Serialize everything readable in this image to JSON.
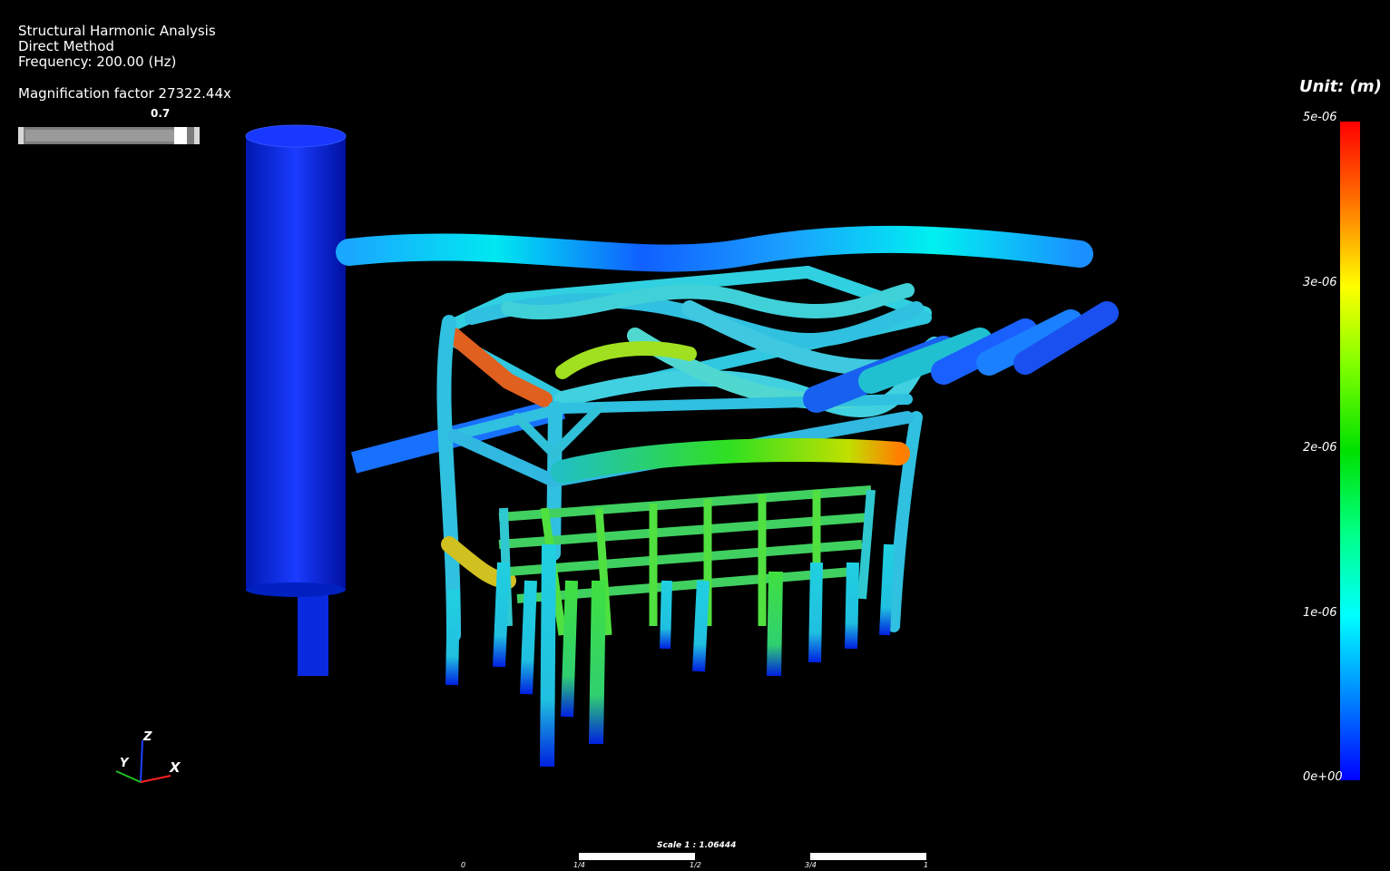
{
  "header": {
    "title": "Structural Harmonic Analysis",
    "method": "Direct Method",
    "frequency": "Frequency: 200.00 (Hz)",
    "magnification": "Magnification factor 27322.44x"
  },
  "slider": {
    "value_label": "0.7",
    "value": 0.7
  },
  "legend": {
    "unit": "Unit: (m)",
    "ticks": [
      "5e-06",
      "3e-06",
      "2e-06",
      "1e-06",
      "0e+00"
    ],
    "colors": [
      "#ff0000",
      "#ffff00",
      "#00e000",
      "#00ffff",
      "#0000ff"
    ]
  },
  "scale": {
    "label": "Scale 1 : 1.06444",
    "ticks": [
      "0",
      "1/4",
      "1/2",
      "3/4",
      "1"
    ]
  },
  "triad": {
    "x": "X",
    "y": "Y",
    "z": "Z"
  }
}
